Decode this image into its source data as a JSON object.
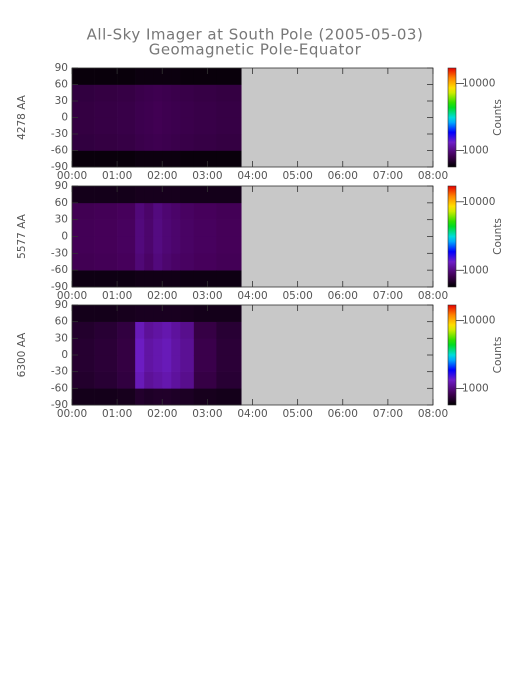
{
  "title": "All-Sky Imager at South Pole (2005-05-03)",
  "subtitle": "Geomagnetic Pole-Equator",
  "chart_data": [
    {
      "type": "heatmap",
      "ylabel": "4278 AA",
      "colormap": "rainbow",
      "x_edges": [
        0,
        0.5,
        1,
        1.4,
        1.6,
        1.8,
        2.0,
        2.2,
        2.4,
        2.7,
        3.2,
        3.75
      ],
      "y_edges": [
        -90,
        -60,
        -30,
        0,
        30,
        60,
        90
      ],
      "z": [
        [
          600,
          760,
          770,
          770,
          760,
          600
        ],
        [
          600,
          770,
          780,
          780,
          770,
          600
        ],
        [
          600,
          780,
          790,
          790,
          780,
          600
        ],
        [
          610,
          800,
          810,
          810,
          800,
          610
        ],
        [
          610,
          810,
          820,
          820,
          810,
          610
        ],
        [
          610,
          820,
          830,
          830,
          820,
          610
        ],
        [
          610,
          810,
          820,
          820,
          810,
          610
        ],
        [
          610,
          800,
          810,
          810,
          800,
          610
        ],
        [
          600,
          790,
          800,
          800,
          790,
          600
        ],
        [
          600,
          780,
          790,
          790,
          780,
          600
        ],
        [
          600,
          770,
          780,
          780,
          770,
          600
        ]
      ],
      "xlim": [
        0,
        8
      ],
      "xticks": [
        {
          "value": 0,
          "label": "00:00"
        },
        {
          "value": 1,
          "label": "01:00"
        },
        {
          "value": 2,
          "label": "02:00"
        },
        {
          "value": 3,
          "label": "03:00"
        },
        {
          "value": 4,
          "label": "04:00"
        },
        {
          "value": 5,
          "label": "05:00"
        },
        {
          "value": 6,
          "label": "06:00"
        },
        {
          "value": 7,
          "label": "07:00"
        },
        {
          "value": 8,
          "label": "08:00"
        }
      ],
      "ylim": [
        -90,
        90
      ],
      "yticks": [
        -90,
        -60,
        -30,
        0,
        30,
        60,
        90
      ],
      "colorbar": {
        "label": "Counts",
        "log": true,
        "lim": [
          570,
          17000
        ],
        "ticks": [
          1000,
          10000
        ]
      }
    },
    {
      "type": "heatmap",
      "ylabel": "5577 AA",
      "colormap": "rainbow",
      "x_edges": [
        0,
        0.5,
        1,
        1.4,
        1.6,
        1.8,
        2.0,
        2.2,
        2.4,
        2.7,
        3.2,
        3.75
      ],
      "y_edges": [
        -90,
        -60,
        -30,
        0,
        30,
        60,
        90
      ],
      "z": [
        [
          620,
          830,
          840,
          840,
          830,
          640
        ],
        [
          620,
          840,
          850,
          850,
          840,
          640
        ],
        [
          620,
          860,
          870,
          870,
          860,
          640
        ],
        [
          630,
          960,
          980,
          980,
          970,
          650
        ],
        [
          630,
          900,
          920,
          920,
          910,
          650
        ],
        [
          630,
          980,
          1000,
          1000,
          990,
          650
        ],
        [
          630,
          930,
          950,
          950,
          940,
          650
        ],
        [
          630,
          900,
          920,
          920,
          910,
          650
        ],
        [
          620,
          880,
          890,
          890,
          880,
          640
        ],
        [
          620,
          860,
          870,
          870,
          860,
          640
        ],
        [
          620,
          840,
          850,
          850,
          840,
          640
        ]
      ],
      "xlim": [
        0,
        8
      ],
      "xticks": [
        {
          "value": 0,
          "label": "00:00"
        },
        {
          "value": 1,
          "label": "01:00"
        },
        {
          "value": 2,
          "label": "02:00"
        },
        {
          "value": 3,
          "label": "03:00"
        },
        {
          "value": 4,
          "label": "04:00"
        },
        {
          "value": 5,
          "label": "05:00"
        },
        {
          "value": 6,
          "label": "06:00"
        },
        {
          "value": 7,
          "label": "07:00"
        },
        {
          "value": 8,
          "label": "08:00"
        }
      ],
      "ylim": [
        -90,
        90
      ],
      "yticks": [
        -90,
        -60,
        -30,
        0,
        30,
        60,
        90
      ],
      "colorbar": {
        "label": "Counts",
        "log": true,
        "lim": [
          570,
          17000
        ],
        "ticks": [
          1000,
          10000
        ]
      }
    },
    {
      "type": "heatmap",
      "ylabel": "6300 AA",
      "colormap": "rainbow",
      "x_edges": [
        0,
        0.5,
        1,
        1.4,
        1.6,
        1.8,
        2.0,
        2.2,
        2.4,
        2.7,
        3.2,
        3.75
      ],
      "y_edges": [
        -90,
        -60,
        -30,
        0,
        30,
        60,
        90
      ],
      "z": [
        [
          640,
          700,
          710,
          710,
          700,
          640
        ],
        [
          640,
          720,
          730,
          730,
          720,
          640
        ],
        [
          650,
          760,
          770,
          770,
          760,
          650
        ],
        [
          700,
          1250,
          1300,
          1300,
          1250,
          660
        ],
        [
          680,
          1100,
          1150,
          1150,
          1100,
          660
        ],
        [
          690,
          1150,
          1200,
          1200,
          1150,
          660
        ],
        [
          690,
          1200,
          1250,
          1250,
          1200,
          660
        ],
        [
          680,
          1120,
          1150,
          1150,
          1120,
          660
        ],
        [
          670,
          1050,
          1080,
          1080,
          1050,
          650
        ],
        [
          650,
          780,
          800,
          800,
          780,
          640
        ],
        [
          640,
          720,
          730,
          730,
          720,
          640
        ]
      ],
      "xlim": [
        0,
        8
      ],
      "xticks": [
        {
          "value": 0,
          "label": "00:00"
        },
        {
          "value": 1,
          "label": "01:00"
        },
        {
          "value": 2,
          "label": "02:00"
        },
        {
          "value": 3,
          "label": "03:00"
        },
        {
          "value": 4,
          "label": "04:00"
        },
        {
          "value": 5,
          "label": "05:00"
        },
        {
          "value": 6,
          "label": "06:00"
        },
        {
          "value": 7,
          "label": "07:00"
        },
        {
          "value": 8,
          "label": "08:00"
        }
      ],
      "ylim": [
        -90,
        90
      ],
      "yticks": [
        -90,
        -60,
        -30,
        0,
        30,
        60,
        90
      ],
      "colorbar": {
        "label": "Counts",
        "log": true,
        "lim": [
          570,
          17000
        ],
        "ticks": [
          1000,
          10000
        ]
      }
    }
  ]
}
